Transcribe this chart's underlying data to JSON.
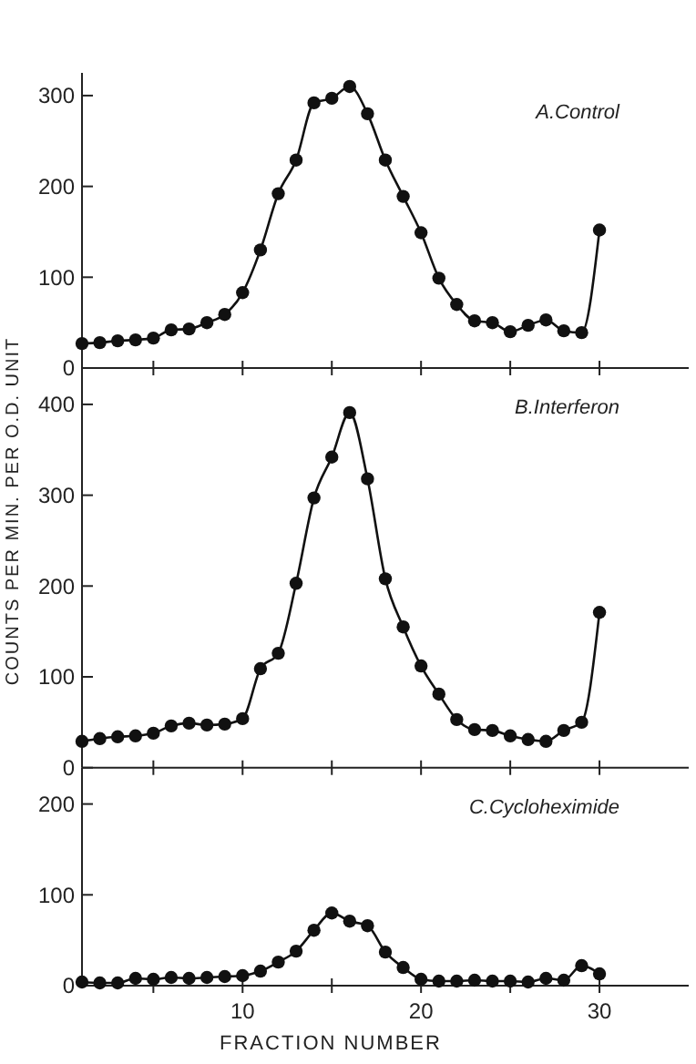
{
  "chart_data": [
    {
      "type": "line",
      "title": "A.Control",
      "x": [
        1,
        2,
        3,
        4,
        5,
        6,
        7,
        8,
        9,
        10,
        11,
        12,
        13,
        14,
        15,
        16,
        17,
        18,
        19,
        20,
        21,
        22,
        23,
        24,
        25,
        26,
        27,
        28,
        29,
        30
      ],
      "series": [
        {
          "color": "#111111",
          "values": [
            27,
            28,
            30,
            31,
            33,
            42,
            43,
            50,
            59,
            83,
            130,
            192,
            229,
            292,
            297,
            310,
            280,
            229,
            189,
            149,
            99,
            70,
            52,
            50,
            40,
            47,
            53,
            41,
            39,
            152
          ]
        }
      ],
      "xlim": [
        1,
        35
      ],
      "xticks": [
        {
          "value": 5,
          "label": null
        },
        {
          "value": 10,
          "label": null
        },
        {
          "value": 15,
          "label": null
        },
        {
          "value": 20,
          "label": null
        },
        {
          "value": 25,
          "label": null
        },
        {
          "value": 30,
          "label": null
        }
      ],
      "ylim": [
        0,
        325
      ],
      "yticks": [
        0,
        100,
        200,
        300
      ],
      "tick_labels": "y",
      "marker": "circle",
      "line_style": "solid",
      "grid": false
    },
    {
      "type": "line",
      "title": "B.Interferon",
      "ylabel": "COUNTS PER MIN. PER O.D. UNIT",
      "x": [
        1,
        2,
        3,
        4,
        5,
        6,
        7,
        8,
        9,
        10,
        11,
        12,
        13,
        14,
        15,
        16,
        17,
        18,
        19,
        20,
        21,
        22,
        23,
        24,
        25,
        26,
        27,
        28,
        29,
        30
      ],
      "series": [
        {
          "color": "#111111",
          "values": [
            29,
            32,
            34,
            35,
            38,
            46,
            49,
            47,
            48,
            54,
            109,
            126,
            203,
            297,
            342,
            391,
            318,
            208,
            155,
            112,
            81,
            53,
            42,
            41,
            35,
            31,
            29,
            41,
            50,
            171
          ]
        }
      ],
      "xlim": [
        1,
        35
      ],
      "xticks": [
        {
          "value": 5,
          "label": null
        },
        {
          "value": 10,
          "label": null
        },
        {
          "value": 15,
          "label": null
        },
        {
          "value": 20,
          "label": null
        },
        {
          "value": 25,
          "label": null
        },
        {
          "value": 30,
          "label": null
        }
      ],
      "ylim": [
        0,
        440
      ],
      "yticks": [
        0,
        100,
        200,
        300,
        400
      ],
      "tick_labels": "y",
      "marker": "circle",
      "line_style": "solid",
      "grid": false
    },
    {
      "type": "line",
      "title": "C.Cycloheximide",
      "xlabel": "FRACTION NUMBER",
      "x": [
        1,
        2,
        3,
        4,
        5,
        6,
        7,
        8,
        9,
        10,
        11,
        12,
        13,
        14,
        15,
        16,
        17,
        18,
        19,
        20,
        21,
        22,
        23,
        24,
        25,
        26,
        27,
        28,
        29,
        30
      ],
      "series": [
        {
          "color": "#111111",
          "values": [
            4,
            3,
            3,
            8,
            7,
            9,
            8,
            9,
            10,
            11,
            16,
            26,
            38,
            61,
            80,
            71,
            66,
            37,
            20,
            7,
            5,
            5,
            6,
            5,
            5,
            4,
            8,
            6,
            22,
            13
          ]
        }
      ],
      "xlim": [
        1,
        35
      ],
      "xticks": [
        {
          "value": 5,
          "label": null
        },
        10,
        {
          "value": 15,
          "label": null
        },
        20,
        {
          "value": 25,
          "label": null
        },
        30
      ],
      "ylim": [
        0,
        240
      ],
      "yticks": [
        0,
        100,
        200
      ],
      "marker": "circle",
      "line_style": "solid",
      "grid": false
    }
  ]
}
